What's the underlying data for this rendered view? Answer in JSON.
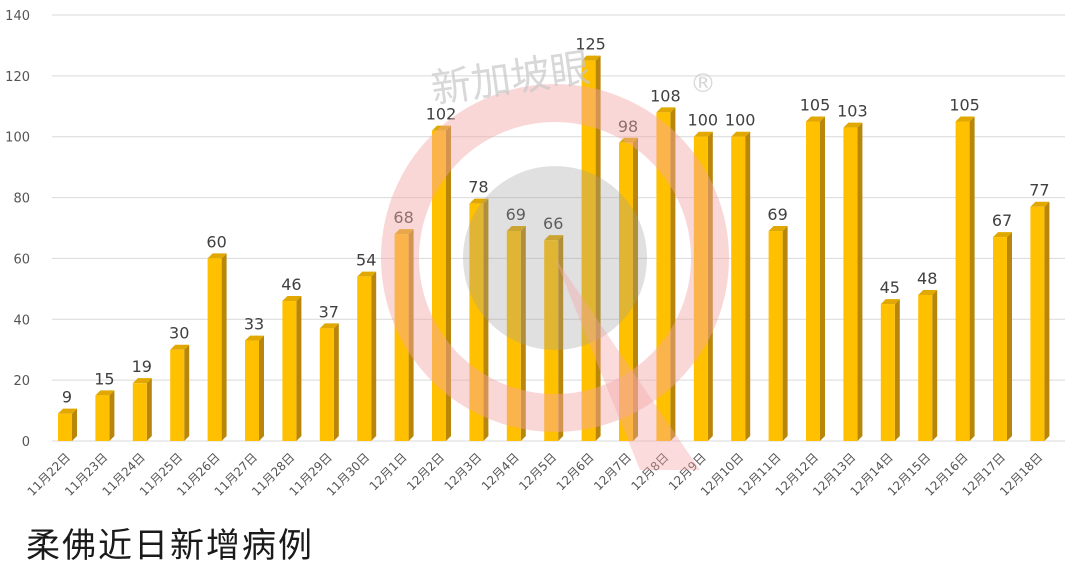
{
  "title": "柔佛近日新增病例",
  "watermark": {
    "text": "新加坡眼",
    "mark": "®"
  },
  "colors": {
    "bar_front": "#FFC000",
    "bar_side": "#B8860B",
    "bar_top": "#E0A800"
  },
  "chart_data": {
    "type": "bar",
    "title": "柔佛近日新增病例",
    "xlabel": "",
    "ylabel": "",
    "ylim": [
      0,
      140
    ],
    "yticks": [
      0,
      20,
      40,
      60,
      80,
      100,
      120,
      140
    ],
    "grid": true,
    "categories": [
      "11月22日",
      "11月23日",
      "11月24日",
      "11月25日",
      "11月26日",
      "11月27日",
      "11月28日",
      "11月29日",
      "11月30日",
      "12月1日",
      "12月2日",
      "12月3日",
      "12月4日",
      "12月5日",
      "12月6日",
      "12月7日",
      "12月8日",
      "12月9日",
      "12月10日",
      "12月11日",
      "12月12日",
      "12月13日",
      "12月14日",
      "12月15日",
      "12月16日",
      "12月17日",
      "12月18日"
    ],
    "values": [
      9,
      15,
      19,
      30,
      60,
      33,
      46,
      37,
      54,
      68,
      102,
      78,
      69,
      66,
      125,
      98,
      108,
      100,
      100,
      69,
      105,
      103,
      45,
      48,
      105,
      67,
      77
    ]
  }
}
